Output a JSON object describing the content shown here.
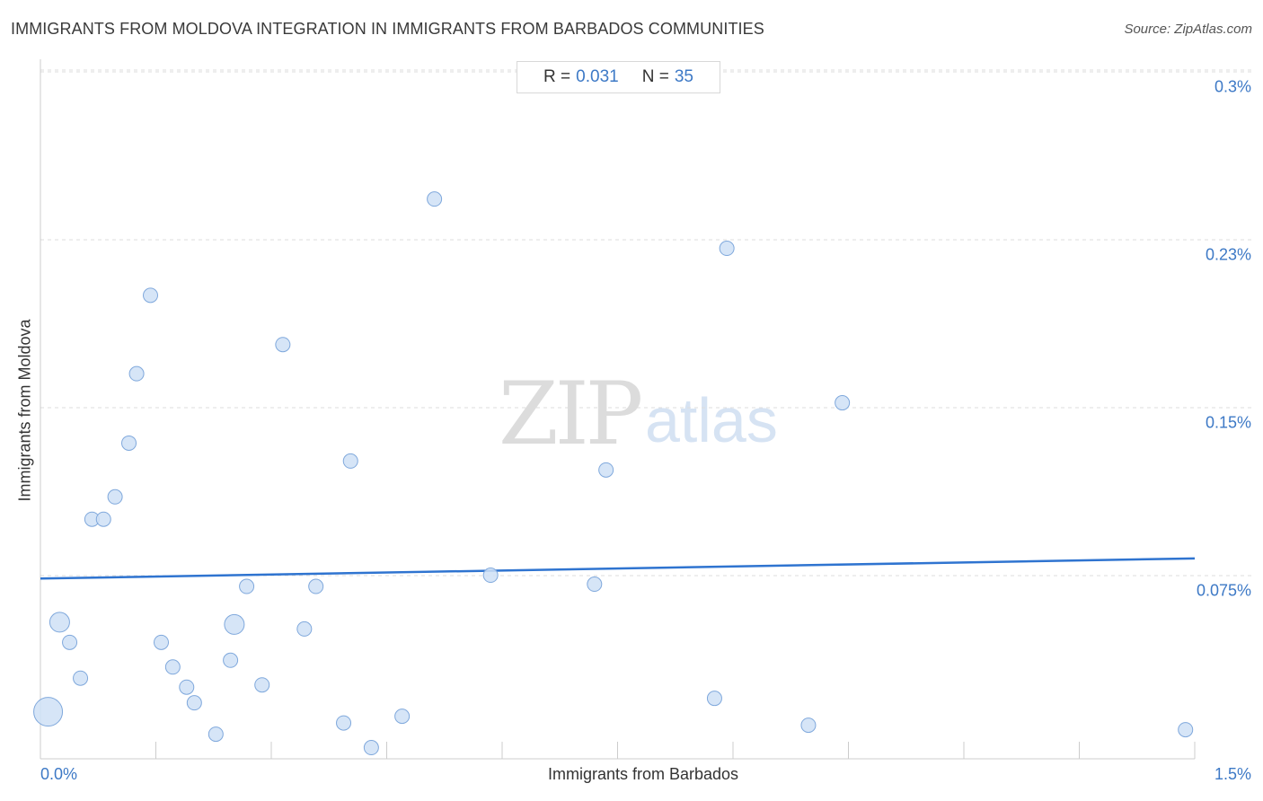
{
  "header": {
    "title": "IMMIGRANTS FROM MOLDOVA INTEGRATION IN IMMIGRANTS FROM BARBADOS COMMUNITIES",
    "source": "Source: ZipAtlas.com"
  },
  "stats": {
    "r_label": "R =",
    "r_value": "0.031",
    "n_label": "N =",
    "n_value": "35"
  },
  "watermark": {
    "zip": "ZIP",
    "atlas": "atlas"
  },
  "colors": {
    "accent": "#3d79c6",
    "point_fill": "#cfe0f6",
    "point_stroke": "#7fa8dc",
    "trend": "#2f74d0"
  },
  "chart_data": {
    "type": "scatter",
    "title": "IMMIGRANTS FROM MOLDOVA INTEGRATION IN IMMIGRANTS FROM BARBADOS COMMUNITIES",
    "xlabel": "Immigrants from Barbados",
    "ylabel": "Immigrants from Moldova",
    "xlim": [
      0,
      1.5
    ],
    "ylim": [
      0,
      0.3
    ],
    "x_tick_labels": [
      "0.0%",
      "1.5%"
    ],
    "y_tick_labels": [
      "0.3%",
      "0.23%",
      "0.15%",
      "0.075%"
    ],
    "y_ticks": [
      0.3,
      0.225,
      0.15,
      0.075
    ],
    "grid": true,
    "trendline": {
      "x": [
        0,
        1.5
      ],
      "y": [
        0.0805,
        0.0895
      ]
    },
    "points": [
      {
        "x": 0.01,
        "y": 0.021,
        "size": "large"
      },
      {
        "x": 0.025,
        "y": 0.061,
        "size": "medium"
      },
      {
        "x": 0.038,
        "y": 0.052
      },
      {
        "x": 0.052,
        "y": 0.036
      },
      {
        "x": 0.067,
        "y": 0.107
      },
      {
        "x": 0.082,
        "y": 0.107
      },
      {
        "x": 0.097,
        "y": 0.117
      },
      {
        "x": 0.115,
        "y": 0.141
      },
      {
        "x": 0.125,
        "y": 0.172
      },
      {
        "x": 0.143,
        "y": 0.207
      },
      {
        "x": 0.157,
        "y": 0.052
      },
      {
        "x": 0.172,
        "y": 0.041
      },
      {
        "x": 0.19,
        "y": 0.032
      },
      {
        "x": 0.2,
        "y": 0.025
      },
      {
        "x": 0.228,
        "y": 0.011
      },
      {
        "x": 0.247,
        "y": 0.044
      },
      {
        "x": 0.252,
        "y": 0.06,
        "size": "medium"
      },
      {
        "x": 0.268,
        "y": 0.077
      },
      {
        "x": 0.288,
        "y": 0.033
      },
      {
        "x": 0.315,
        "y": 0.185
      },
      {
        "x": 0.343,
        "y": 0.058
      },
      {
        "x": 0.358,
        "y": 0.077
      },
      {
        "x": 0.394,
        "y": 0.016
      },
      {
        "x": 0.403,
        "y": 0.133
      },
      {
        "x": 0.43,
        "y": 0.005
      },
      {
        "x": 0.47,
        "y": 0.019
      },
      {
        "x": 0.512,
        "y": 0.25
      },
      {
        "x": 0.585,
        "y": 0.082
      },
      {
        "x": 0.72,
        "y": 0.078
      },
      {
        "x": 0.735,
        "y": 0.129
      },
      {
        "x": 0.876,
        "y": 0.027
      },
      {
        "x": 0.892,
        "y": 0.228
      },
      {
        "x": 0.998,
        "y": 0.015
      },
      {
        "x": 1.042,
        "y": 0.159
      },
      {
        "x": 1.488,
        "y": 0.013
      }
    ]
  }
}
